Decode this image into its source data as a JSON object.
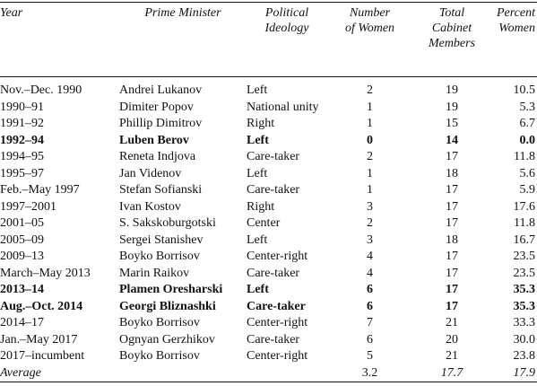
{
  "table": {
    "headers": [
      [
        "Year"
      ],
      [
        "Prime Minister"
      ],
      [
        "Political",
        "Ideology"
      ],
      [
        "Number",
        "of Women"
      ],
      [
        "Total",
        "Cabinet",
        "Members"
      ],
      [
        "Percent",
        "Women"
      ]
    ],
    "rows": [
      {
        "cells": [
          "Nov.–Dec. 1990",
          "Andrei Lukanov",
          "Left",
          "2",
          "19",
          "10.5"
        ]
      },
      {
        "cells": [
          "1990–91",
          "Dimiter Popov",
          "National unity",
          "1",
          "19",
          "5.3"
        ]
      },
      {
        "cells": [
          "1991–92",
          "Phillip Dimitrov",
          "Right",
          "1",
          "15",
          "6.7"
        ]
      },
      {
        "cells": [
          "1992–94",
          "Luben Berov",
          "Left",
          "0",
          "14",
          "0.0"
        ],
        "bold": true
      },
      {
        "cells": [
          "1994–95",
          "Reneta Indjova",
          "Care-taker",
          "2",
          "17",
          "11.8"
        ]
      },
      {
        "cells": [
          "1995–97",
          "Jan Videnov",
          "Left",
          "1",
          "18",
          "5.6"
        ]
      },
      {
        "cells": [
          "Feb.–May 1997",
          "Stefan Sofianski",
          "Care-taker",
          "1",
          "17",
          "5.9"
        ]
      },
      {
        "cells": [
          "1997–2001",
          "Ivan Kostov",
          "Right",
          "3",
          "17",
          "17.6"
        ]
      },
      {
        "cells": [
          "2001–05",
          "S. Sakskoburgotski",
          "Center",
          "2",
          "17",
          "11.8"
        ]
      },
      {
        "cells": [
          "2005–09",
          "Sergei Stanishev",
          "Left",
          "3",
          "18",
          "16.7"
        ]
      },
      {
        "cells": [
          "2009–13",
          "Boyko Borrisov",
          "Center-right",
          "4",
          "17",
          "23.5"
        ]
      },
      {
        "cells": [
          "March–May 2013",
          "Marin Raikov",
          "Care-taker",
          "4",
          "17",
          "23.5"
        ]
      },
      {
        "cells": [
          "2013–14",
          "Plamen Oresharski",
          "Left",
          "6",
          "17",
          "35.3"
        ],
        "bold": true
      },
      {
        "cells": [
          "Aug.–Oct. 2014",
          "Georgi Bliznashki",
          "Care-taker",
          "6",
          "17",
          "35.3"
        ],
        "bold": true
      },
      {
        "cells": [
          "2014–17",
          "Boyko Borrisov",
          "Center-right",
          "7",
          "21",
          "33.3"
        ]
      },
      {
        "cells": [
          "Jan.–May 2017",
          "Ognyan Gerzhikov",
          "Care-taker",
          "6",
          "20",
          "30.0"
        ]
      },
      {
        "cells": [
          "2017–incumbent",
          "Boyko Borrisov",
          "Center-right",
          "5",
          "21",
          "23.8"
        ]
      }
    ],
    "average": [
      "Average",
      "3.2",
      "17.7",
      "17.9"
    ]
  }
}
